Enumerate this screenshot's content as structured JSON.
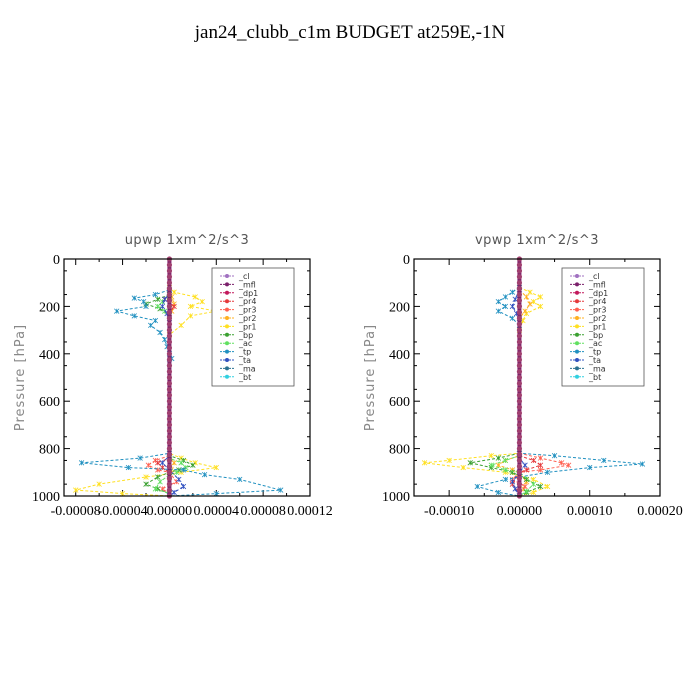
{
  "title": "jan24_clubb_c1m  BUDGET at259E,-1N",
  "legend_labels": [
    "_cl",
    "_mfl",
    "_dp1",
    "_pr4",
    "_pr3",
    "_pr2",
    "_pr1",
    "_bp",
    "_ac",
    "_tp",
    "_ta",
    "_ma",
    "_bt"
  ],
  "series_colors": {
    "_cl": "#a070c0",
    "_mfl": "#7a1f6a",
    "_dp1": "#c2185b",
    "_pr4": "#e5383b",
    "_pr3": "#ff6050",
    "_pr2": "#ffb020",
    "_pr1": "#ffe020",
    "_bp": "#3aa030",
    "_ac": "#60e060",
    "_tp": "#2090c0",
    "_ta": "#3050c0",
    "_ma": "#2a7090",
    "_bt": "#30d0e0"
  },
  "chart_data": [
    {
      "type": "line",
      "title": "upwp   1xm^2/s^3",
      "xlabel": "",
      "ylabel": "Pressure [hPa]",
      "xlim": [
        -9e-05,
        0.00012
      ],
      "ylim": [
        1000,
        0
      ],
      "xticks": [
        -8e-05,
        -4e-05,
        0,
        4e-05,
        8e-05,
        0.00012
      ],
      "xtick_labels": [
        "-0.00008",
        "-0.00004",
        "0.00000",
        "0.00004",
        "0.00008",
        "0.00012"
      ],
      "yticks": [
        0,
        200,
        400,
        600,
        800,
        1000
      ],
      "ytick_labels": [
        "0",
        "200",
        "400",
        "600",
        "800",
        "1000"
      ],
      "legend": "top-right",
      "series": [
        {
          "name": "_pr1",
          "points": [
            [
              0,
              120
            ],
            [
              4e-06,
              140
            ],
            [
              2.2e-05,
              160
            ],
            [
              2.8e-05,
              180
            ],
            [
              1.8e-05,
              200
            ],
            [
              4e-05,
              220
            ],
            [
              1.8e-05,
              240
            ],
            [
              1e-05,
              280
            ],
            [
              0,
              320
            ],
            [
              0,
              820
            ],
            [
              1e-05,
              840
            ],
            [
              2.2e-05,
              860
            ],
            [
              4e-05,
              880
            ],
            [
              1e-05,
              900
            ],
            [
              -2e-05,
              920
            ],
            [
              -6e-05,
              950
            ],
            [
              -8e-05,
              975
            ],
            [
              -4e-05,
              990
            ],
            [
              0,
              1000
            ]
          ]
        },
        {
          "name": "_pr2",
          "points": [
            [
              0,
              130
            ],
            [
              2e-06,
              160
            ],
            [
              4e-06,
              190
            ],
            [
              2e-06,
              220
            ],
            [
              0,
              250
            ],
            [
              0,
              830
            ],
            [
              4e-06,
              860
            ],
            [
              2e-06,
              900
            ],
            [
              0,
              940
            ]
          ]
        },
        {
          "name": "_pr3",
          "points": [
            [
              0,
              830
            ],
            [
              -1.2e-05,
              850
            ],
            [
              -1.8e-05,
              870
            ],
            [
              -1e-05,
              890
            ],
            [
              0,
              900
            ],
            [
              6e-06,
              940
            ],
            [
              -6e-06,
              970
            ],
            [
              0,
              990
            ]
          ]
        },
        {
          "name": "_pr4",
          "points": [
            [
              0,
              150
            ],
            [
              -4e-06,
              170
            ],
            [
              4e-06,
              200
            ],
            [
              0,
              230
            ],
            [
              0,
              840
            ],
            [
              -1e-05,
              860
            ],
            [
              -6e-06,
              880
            ],
            [
              0,
              900
            ]
          ]
        },
        {
          "name": "_bp",
          "points": [
            [
              0,
              150
            ],
            [
              -1e-05,
              170
            ],
            [
              -2e-05,
              190
            ],
            [
              -8e-06,
              210
            ],
            [
              0,
              240
            ],
            [
              0,
              830
            ],
            [
              1.2e-05,
              850
            ],
            [
              2e-05,
              870
            ],
            [
              8e-06,
              890
            ],
            [
              0,
              900
            ],
            [
              -1e-05,
              920
            ],
            [
              -2e-05,
              950
            ],
            [
              -1e-05,
              970
            ],
            [
              0,
              990
            ]
          ]
        },
        {
          "name": "_ac",
          "points": [
            [
              0,
              160
            ],
            [
              -6e-06,
              180
            ],
            [
              -1e-05,
              200
            ],
            [
              -4e-06,
              220
            ],
            [
              0,
              240
            ],
            [
              0,
              840
            ],
            [
              1e-05,
              860
            ],
            [
              1.4e-05,
              880
            ],
            [
              6e-06,
              900
            ],
            [
              0,
              910
            ],
            [
              -8e-06,
              940
            ],
            [
              -1.2e-05,
              970
            ],
            [
              0,
              990
            ]
          ]
        },
        {
          "name": "_tp",
          "points": [
            [
              0,
              130
            ],
            [
              -1.2e-05,
              150
            ],
            [
              -3e-05,
              165
            ],
            [
              -2.2e-05,
              180
            ],
            [
              -2e-05,
              200
            ],
            [
              -4.5e-05,
              220
            ],
            [
              -3e-05,
              240
            ],
            [
              -1.2e-05,
              260
            ],
            [
              -1.6e-05,
              280
            ],
            [
              -8e-06,
              310
            ],
            [
              -4e-06,
              340
            ],
            [
              -2e-06,
              370
            ],
            [
              0,
              400
            ],
            [
              2e-06,
              420
            ],
            [
              0,
              440
            ],
            [
              0,
              820
            ],
            [
              -2.5e-05,
              840
            ],
            [
              -7.5e-05,
              860
            ],
            [
              -3.5e-05,
              880
            ],
            [
              1.2e-05,
              890
            ],
            [
              3e-05,
              910
            ],
            [
              6e-05,
              930
            ],
            [
              9.5e-05,
              975
            ],
            [
              4e-05,
              990
            ],
            [
              0,
              1000
            ]
          ]
        },
        {
          "name": "_ta",
          "points": [
            [
              0,
              140
            ],
            [
              -4e-06,
              170
            ],
            [
              -6e-06,
              200
            ],
            [
              -2e-06,
              230
            ],
            [
              0,
              250
            ],
            [
              0,
              830
            ],
            [
              -6e-06,
              860
            ],
            [
              0,
              890
            ],
            [
              8e-06,
              930
            ],
            [
              1.2e-05,
              960
            ],
            [
              4e-06,
              985
            ],
            [
              0,
              1000
            ]
          ]
        },
        {
          "name": "_cl",
          "points": [
            [
              0,
              0
            ],
            [
              0,
              1000
            ]
          ]
        },
        {
          "name": "_mfl",
          "points": [
            [
              0,
              0
            ],
            [
              0,
              1000
            ]
          ]
        },
        {
          "name": "_dp1",
          "points": [
            [
              0,
              0
            ],
            [
              0,
              1000
            ]
          ]
        },
        {
          "name": "_ma",
          "points": [
            [
              0,
              0
            ],
            [
              0,
              1000
            ]
          ]
        },
        {
          "name": "_bt",
          "points": [
            [
              0,
              0
            ],
            [
              0,
              1000
            ]
          ]
        }
      ]
    },
    {
      "type": "line",
      "title": "vpwp   1xm^2/s^3",
      "xlabel": "",
      "ylabel": "Pressure [hPa]",
      "xlim": [
        -0.00015,
        0.0002
      ],
      "ylim": [
        1000,
        0
      ],
      "xticks": [
        -0.0001,
        0,
        0.0001,
        0.0002
      ],
      "xtick_labels": [
        "-0.00010",
        "0.00000",
        "0.00010",
        "0.00020"
      ],
      "yticks": [
        0,
        200,
        400,
        600,
        800,
        1000
      ],
      "ytick_labels": [
        "0",
        "200",
        "400",
        "600",
        "800",
        "1000"
      ],
      "legend": "top-right",
      "series": [
        {
          "name": "_pr1",
          "points": [
            [
              0,
              120
            ],
            [
              1.5e-05,
              140
            ],
            [
              3e-05,
              160
            ],
            [
              2e-05,
              180
            ],
            [
              3e-05,
              200
            ],
            [
              1e-05,
              230
            ],
            [
              5e-06,
              260
            ],
            [
              0,
              300
            ],
            [
              0,
              820
            ],
            [
              -4e-05,
              830
            ],
            [
              -0.0001,
              850
            ],
            [
              -0.000135,
              860
            ],
            [
              -8e-05,
              880
            ],
            [
              -2e-05,
              900
            ],
            [
              2e-05,
              930
            ],
            [
              4e-05,
              960
            ],
            [
              2e-05,
              985
            ],
            [
              0,
              1000
            ]
          ]
        },
        {
          "name": "_pr2",
          "points": [
            [
              0,
              130
            ],
            [
              1e-05,
              160
            ],
            [
              1.5e-05,
              190
            ],
            [
              8e-06,
              220
            ],
            [
              0,
              250
            ],
            [
              0,
              830
            ],
            [
              -2e-05,
              850
            ],
            [
              -3e-05,
              870
            ],
            [
              -1e-05,
              890
            ],
            [
              0,
              900
            ],
            [
              1e-05,
              940
            ],
            [
              6e-06,
              970
            ],
            [
              0,
              990
            ]
          ]
        },
        {
          "name": "_pr3",
          "points": [
            [
              0,
              820
            ],
            [
              3e-05,
              840
            ],
            [
              6e-05,
              860
            ],
            [
              7e-05,
              870
            ],
            [
              3e-05,
              890
            ],
            [
              0,
              900
            ],
            [
              -1e-05,
              930
            ],
            [
              8e-06,
              960
            ],
            [
              0,
              990
            ]
          ]
        },
        {
          "name": "_pr4",
          "points": [
            [
              0,
              830
            ],
            [
              2e-05,
              850
            ],
            [
              3e-05,
              870
            ],
            [
              1e-05,
              890
            ],
            [
              0,
              900
            ],
            [
              -1e-05,
              950
            ],
            [
              0,
              990
            ]
          ]
        },
        {
          "name": "_bp",
          "points": [
            [
              0,
              820
            ],
            [
              -3e-05,
              840
            ],
            [
              -7e-05,
              860
            ],
            [
              -4e-05,
              880
            ],
            [
              -1e-05,
              900
            ],
            [
              1e-05,
              930
            ],
            [
              3e-05,
              960
            ],
            [
              1e-05,
              985
            ],
            [
              0,
              1000
            ]
          ]
        },
        {
          "name": "_ac",
          "points": [
            [
              0,
              830
            ],
            [
              -2e-05,
              850
            ],
            [
              -4e-05,
              870
            ],
            [
              -2e-05,
              890
            ],
            [
              0,
              900
            ],
            [
              2e-05,
              950
            ],
            [
              1e-05,
              980
            ],
            [
              0,
              1000
            ]
          ]
        },
        {
          "name": "_tp",
          "points": [
            [
              0,
              120
            ],
            [
              -1e-05,
              140
            ],
            [
              -2e-05,
              160
            ],
            [
              -3e-05,
              180
            ],
            [
              -2e-05,
              200
            ],
            [
              -3e-05,
              220
            ],
            [
              -1e-05,
              250
            ],
            [
              0,
              280
            ],
            [
              0,
              820
            ],
            [
              5e-05,
              830
            ],
            [
              0.00012,
              850
            ],
            [
              0.000175,
              865
            ],
            [
              0.0001,
              880
            ],
            [
              4e-05,
              900
            ],
            [
              -2e-05,
              930
            ],
            [
              -6e-05,
              960
            ],
            [
              -3e-05,
              985
            ],
            [
              0,
              1000
            ]
          ]
        },
        {
          "name": "_ta",
          "points": [
            [
              0,
              130
            ],
            [
              -6e-06,
              170
            ],
            [
              -1e-05,
              200
            ],
            [
              -4e-06,
              230
            ],
            [
              0,
              250
            ],
            [
              0,
              840
            ],
            [
              8e-06,
              870
            ],
            [
              0,
              900
            ],
            [
              -1e-05,
              940
            ],
            [
              -6e-06,
              970
            ],
            [
              0,
              1000
            ]
          ]
        },
        {
          "name": "_cl",
          "points": [
            [
              0,
              0
            ],
            [
              0,
              1000
            ]
          ]
        },
        {
          "name": "_mfl",
          "points": [
            [
              0,
              0
            ],
            [
              0,
              1000
            ]
          ]
        },
        {
          "name": "_dp1",
          "points": [
            [
              0,
              0
            ],
            [
              0,
              1000
            ]
          ]
        },
        {
          "name": "_ma",
          "points": [
            [
              0,
              0
            ],
            [
              0,
              1000
            ]
          ]
        },
        {
          "name": "_bt",
          "points": [
            [
              0,
              0
            ],
            [
              0,
              1000
            ]
          ]
        }
      ]
    }
  ]
}
